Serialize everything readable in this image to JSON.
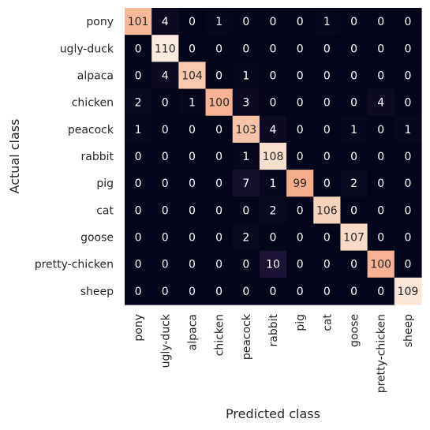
{
  "chart_data": {
    "type": "heatmap",
    "title": "",
    "xlabel": "Predicted class",
    "ylabel": "Actual class",
    "colorbar": false,
    "grid": false,
    "colormap": "rocket",
    "color_range": [
      0,
      110
    ],
    "categories": [
      "pony",
      "ugly-duck",
      "alpaca",
      "chicken",
      "peacock",
      "rabbit",
      "pig",
      "cat",
      "goose",
      "pretty-chicken",
      "sheep"
    ],
    "matrix": [
      [
        101,
        4,
        0,
        1,
        0,
        0,
        0,
        1,
        0,
        0,
        0
      ],
      [
        0,
        110,
        0,
        0,
        0,
        0,
        0,
        0,
        0,
        0,
        0
      ],
      [
        0,
        4,
        104,
        0,
        1,
        0,
        0,
        0,
        0,
        0,
        0
      ],
      [
        2,
        0,
        1,
        100,
        3,
        0,
        0,
        0,
        0,
        4,
        0
      ],
      [
        1,
        0,
        0,
        0,
        103,
        4,
        0,
        0,
        1,
        0,
        1
      ],
      [
        0,
        0,
        0,
        0,
        1,
        108,
        0,
        0,
        0,
        0,
        0
      ],
      [
        0,
        0,
        0,
        0,
        7,
        1,
        99,
        0,
        2,
        0,
        0
      ],
      [
        0,
        0,
        0,
        0,
        0,
        2,
        0,
        106,
        0,
        0,
        0
      ],
      [
        0,
        0,
        0,
        0,
        2,
        0,
        0,
        0,
        107,
        0,
        0
      ],
      [
        0,
        0,
        0,
        0,
        0,
        10,
        0,
        0,
        0,
        100,
        0
      ],
      [
        0,
        0,
        0,
        0,
        0,
        0,
        0,
        0,
        0,
        0,
        109
      ]
    ]
  }
}
